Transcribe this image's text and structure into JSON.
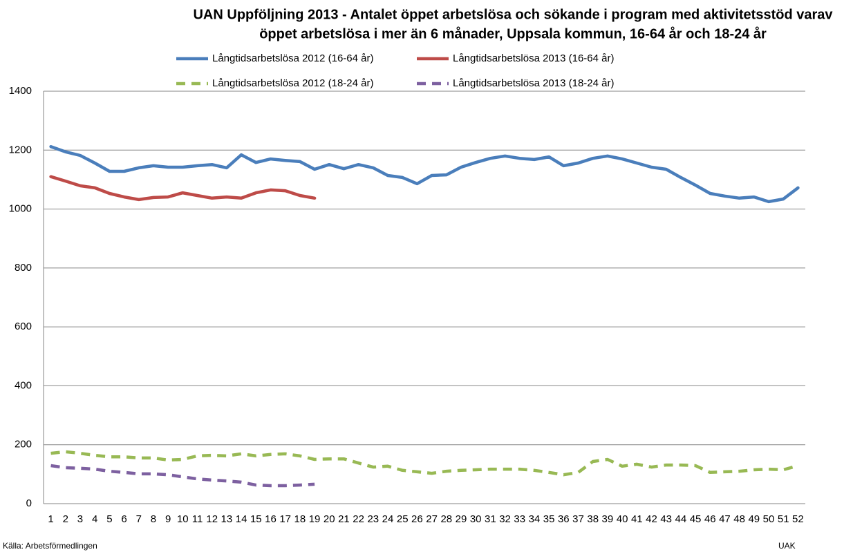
{
  "chart_data": {
    "type": "line",
    "title": [
      "UAN Uppföljning 2013 - Antalet öppet arbetslösa och sökande i program med aktivitetsstöd varav",
      "öppet arbetslösa i mer än 6 månader, Uppsala kommun, 16-64 år och 18-24 år"
    ],
    "categories": [
      "1",
      "2",
      "3",
      "4",
      "5",
      "6",
      "7",
      "8",
      "9",
      "10",
      "11",
      "12",
      "13",
      "14",
      "15",
      "16",
      "17",
      "18",
      "19",
      "20",
      "21",
      "22",
      "23",
      "24",
      "25",
      "26",
      "27",
      "28",
      "29",
      "30",
      "31",
      "32",
      "33",
      "34",
      "35",
      "36",
      "37",
      "38",
      "39",
      "40",
      "41",
      "42",
      "43",
      "44",
      "45",
      "46",
      "47",
      "48",
      "49",
      "50",
      "51",
      "52"
    ],
    "series": [
      {
        "name": "Långtidsarbetslösa 2012 (16-64 år)",
        "color": "#4a7ebb",
        "dashed": false,
        "values": [
          1212,
          1194,
          1182,
          1156,
          1128,
          1128,
          1140,
          1147,
          1142,
          1142,
          1147,
          1151,
          1140,
          1184,
          1158,
          1170,
          1165,
          1161,
          1135,
          1151,
          1137,
          1151,
          1140,
          1114,
          1107,
          1086,
          1114,
          1116,
          1142,
          1158,
          1172,
          1180,
          1172,
          1168,
          1177,
          1147,
          1156,
          1172,
          1180,
          1170,
          1156,
          1142,
          1135,
          1107,
          1081,
          1053,
          1044,
          1037,
          1041,
          1025,
          1034,
          1072
        ]
      },
      {
        "name": "Långtidsarbetslösa 2013 (16-64 år)",
        "color": "#be4b48",
        "dashed": false,
        "values": [
          1110,
          1095,
          1079,
          1072,
          1053,
          1041,
          1032,
          1039,
          1041,
          1055,
          1046,
          1037,
          1041,
          1037,
          1055,
          1065,
          1062,
          1046,
          1037,
          null,
          null,
          null,
          null,
          null,
          null,
          null,
          null,
          null,
          null,
          null,
          null,
          null,
          null,
          null,
          null,
          null,
          null,
          null,
          null,
          null,
          null,
          null,
          null,
          null,
          null,
          null,
          null,
          null,
          null,
          null,
          null,
          null
        ]
      },
      {
        "name": "Långtidsarbetslösa 2012 (18-24 år)",
        "color": "#98b954",
        "dashed": true,
        "values": [
          171,
          176,
          171,
          164,
          159,
          159,
          155,
          155,
          148,
          150,
          162,
          164,
          162,
          169,
          162,
          167,
          169,
          162,
          150,
          152,
          152,
          138,
          124,
          127,
          113,
          108,
          103,
          110,
          113,
          115,
          117,
          117,
          117,
          113,
          106,
          98,
          106,
          143,
          150,
          127,
          134,
          124,
          131,
          131,
          129,
          106,
          108,
          110,
          115,
          117,
          115,
          129
        ]
      },
      {
        "name": "Långtidsarbetslösa 2013 (18-24 år)",
        "color": "#7d60a0",
        "dashed": true,
        "values": [
          129,
          122,
          120,
          117,
          110,
          106,
          101,
          101,
          98,
          91,
          84,
          80,
          77,
          73,
          63,
          61,
          61,
          63,
          66,
          null,
          null,
          null,
          null,
          null,
          null,
          null,
          null,
          null,
          null,
          null,
          null,
          null,
          null,
          null,
          null,
          null,
          null,
          null,
          null,
          null,
          null,
          null,
          null,
          null,
          null,
          null,
          null,
          null,
          null,
          null,
          null,
          null
        ]
      }
    ],
    "ylim": [
      0,
      1400
    ],
    "yticks": [
      0,
      200,
      400,
      600,
      800,
      1000,
      1200,
      1400
    ],
    "grid": true,
    "source": "Källa: Arbetsförmedlingen",
    "credit": "UAK"
  }
}
